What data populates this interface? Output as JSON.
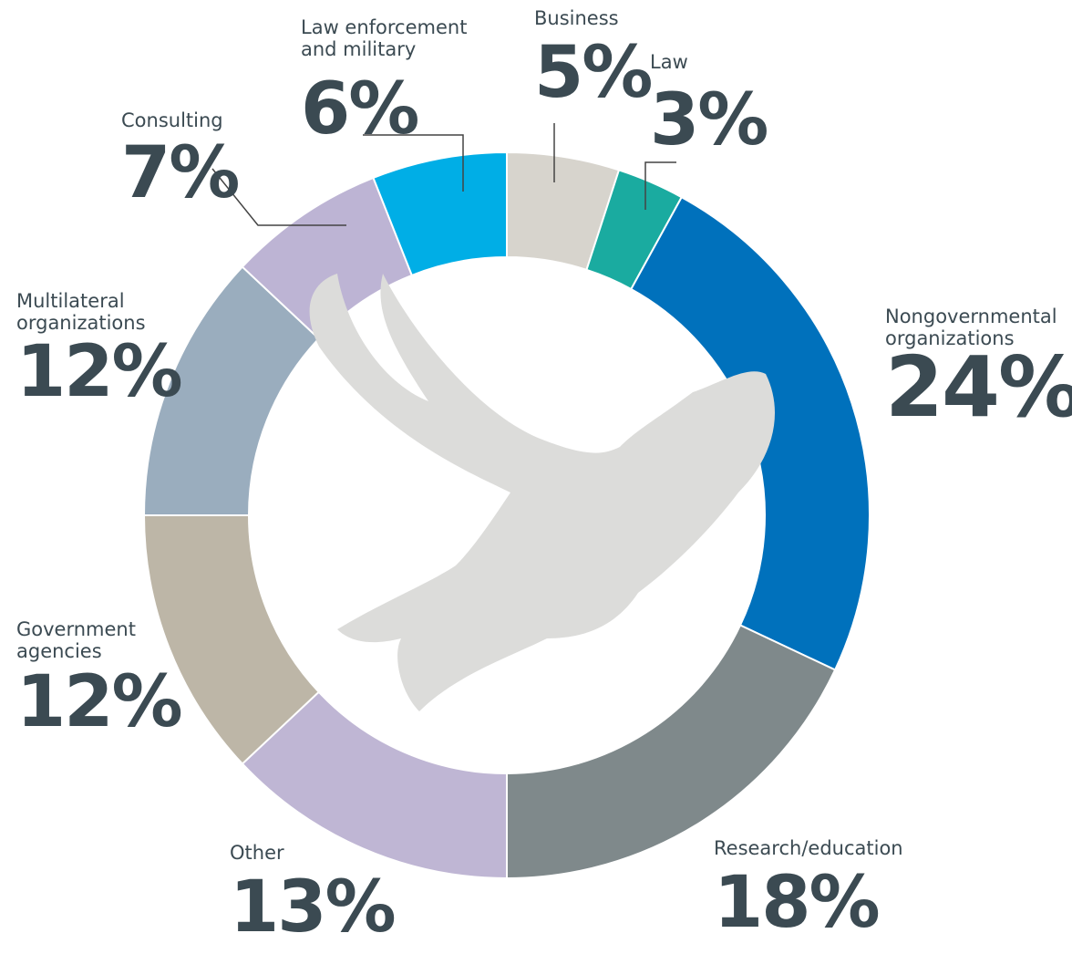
{
  "chart_data": {
    "type": "donut",
    "categories": [
      "Business",
      "Law",
      "Nongovernmental organizations",
      "Research/education",
      "Other",
      "Government agencies",
      "Multilateral organizations",
      "Consulting",
      "Law enforcement and military"
    ],
    "values": [
      5,
      3,
      24,
      18,
      13,
      12,
      12,
      7,
      6
    ],
    "value_labels": [
      "5%",
      "3%",
      "24%",
      "18%",
      "13%",
      "12%",
      "12%",
      "7%",
      "6%"
    ],
    "colors": [
      "#d7d4cd",
      "#1aaba0",
      "#0071bc",
      "#7f898b",
      "#bfb6d4",
      "#bdb6a7",
      "#9aadbe",
      "#bdb4d4",
      "#00aee6"
    ]
  }
}
